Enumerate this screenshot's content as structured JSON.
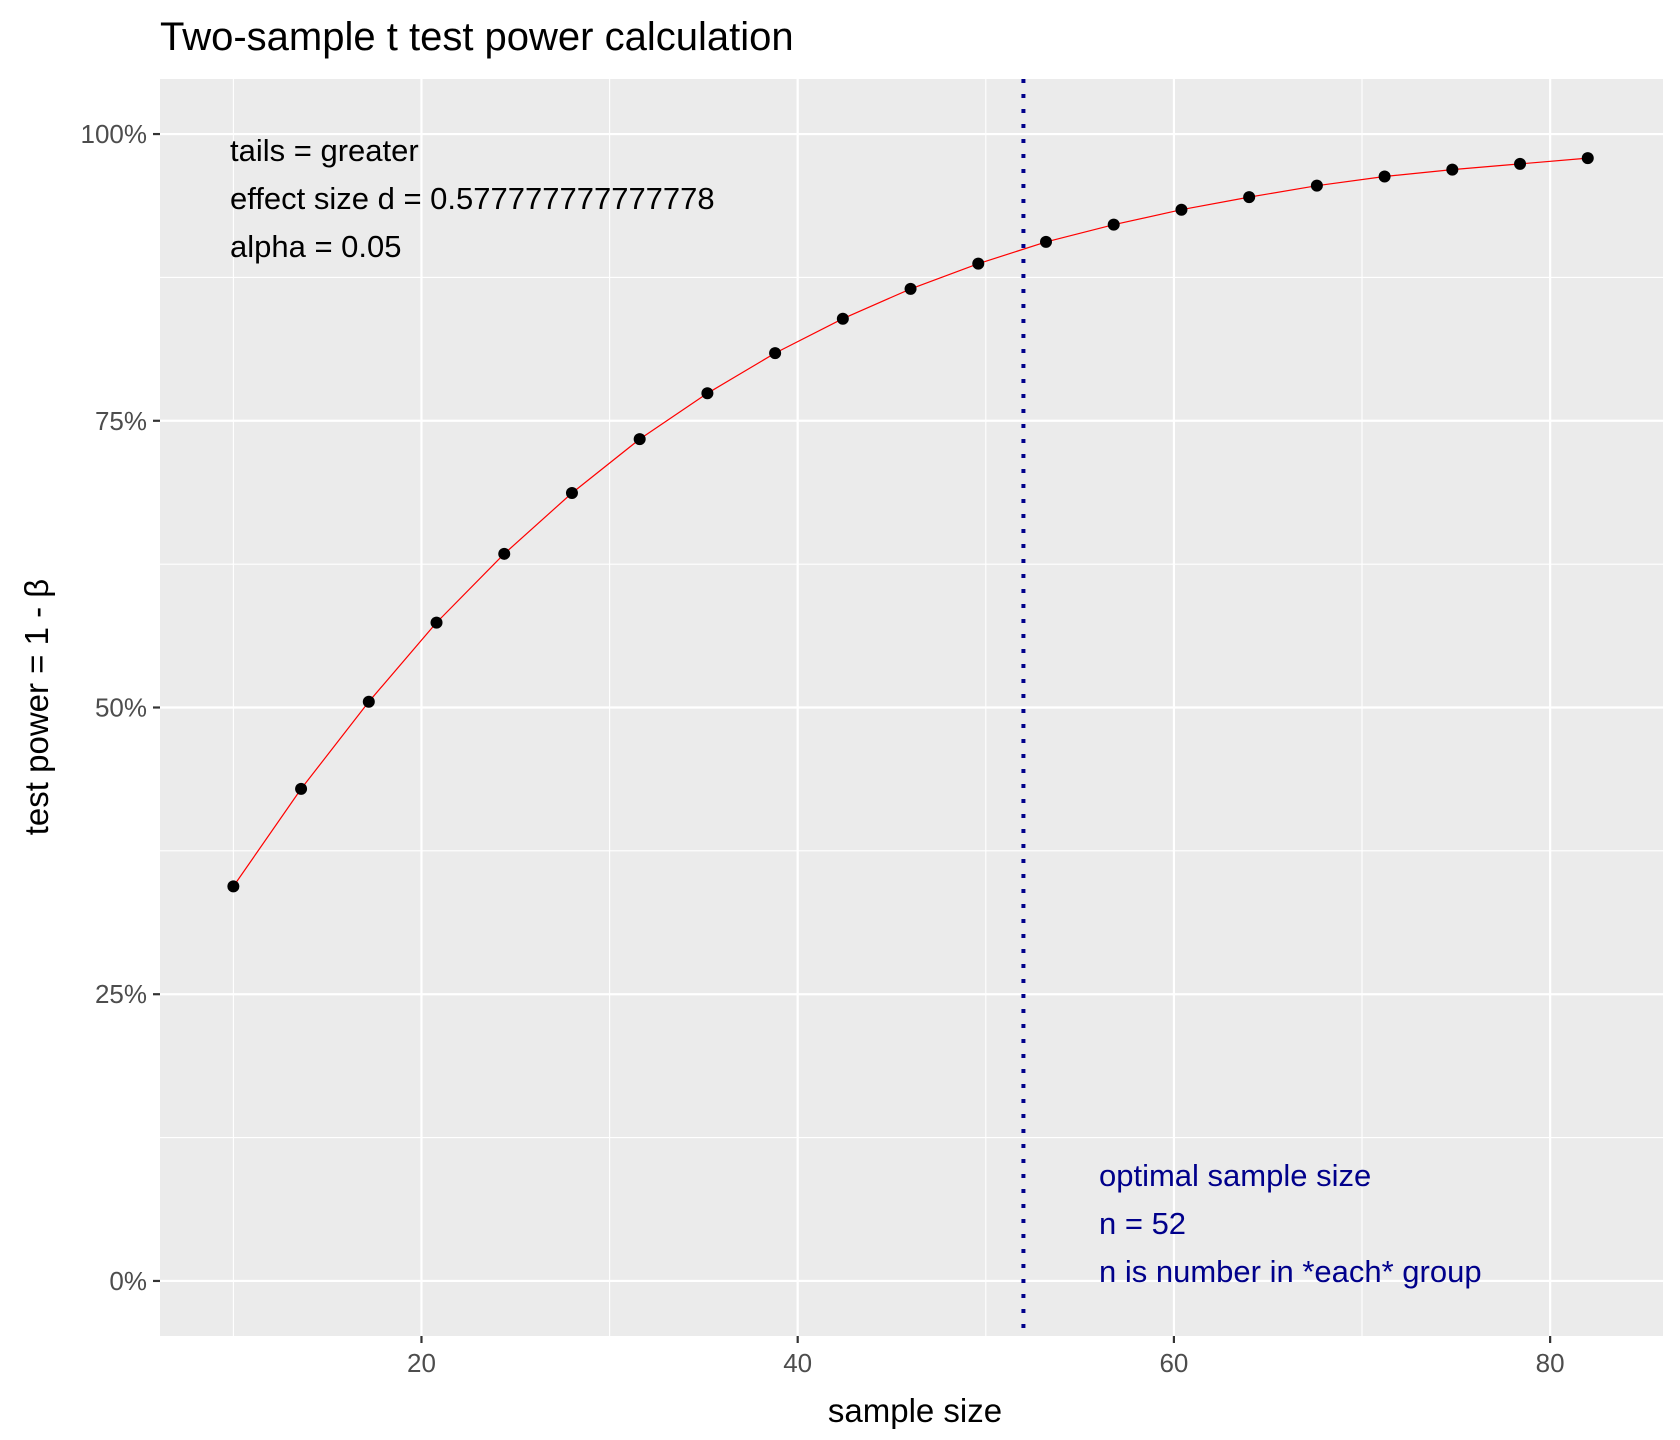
{
  "chart_data": {
    "type": "line",
    "title": "Two-sample t test power calculation",
    "xlabel": "sample size",
    "ylabel": "test power = 1 - β",
    "xlim": [
      6.1,
      86.0
    ],
    "ylim": [
      -0.048,
      1.048
    ],
    "x_ticks": [
      20,
      40,
      60,
      80
    ],
    "x_tick_labels": [
      "20",
      "40",
      "60",
      "80"
    ],
    "y_ticks": [
      0,
      0.25,
      0.5,
      0.75,
      1.0
    ],
    "y_tick_labels": [
      "0%",
      "25%",
      "50%",
      "75%",
      "100%"
    ],
    "grid": true,
    "series": [
      {
        "color": "#ff0000",
        "points": [
          {
            "x": 10.0,
            "y": 0.344
          },
          {
            "x": 13.6,
            "y": 0.429
          },
          {
            "x": 17.2,
            "y": 0.505
          },
          {
            "x": 20.8,
            "y": 0.574
          },
          {
            "x": 24.4,
            "y": 0.634
          },
          {
            "x": 28.0,
            "y": 0.687
          },
          {
            "x": 31.6,
            "y": 0.734
          },
          {
            "x": 35.2,
            "y": 0.774
          },
          {
            "x": 38.8,
            "y": 0.809
          },
          {
            "x": 42.4,
            "y": 0.839
          },
          {
            "x": 46.0,
            "y": 0.865
          },
          {
            "x": 49.6,
            "y": 0.887
          },
          {
            "x": 53.2,
            "y": 0.906
          },
          {
            "x": 56.8,
            "y": 0.921
          },
          {
            "x": 60.4,
            "y": 0.934
          },
          {
            "x": 64.0,
            "y": 0.945
          },
          {
            "x": 67.6,
            "y": 0.955
          },
          {
            "x": 71.2,
            "y": 0.963
          },
          {
            "x": 74.8,
            "y": 0.969
          },
          {
            "x": 78.4,
            "y": 0.974
          },
          {
            "x": 82.0,
            "y": 0.979
          }
        ]
      }
    ],
    "reference_line": {
      "x": 52,
      "color": "#00008b",
      "style": "dotted"
    },
    "annotations": {
      "params": [
        "tails = greater",
        "effect size d = 0.577777777777778",
        "alpha = 0.05"
      ],
      "optimal": [
        "optimal sample size",
        "n = 52",
        "n is number in *each* group"
      ],
      "optimal_color": "#00008b"
    }
  }
}
